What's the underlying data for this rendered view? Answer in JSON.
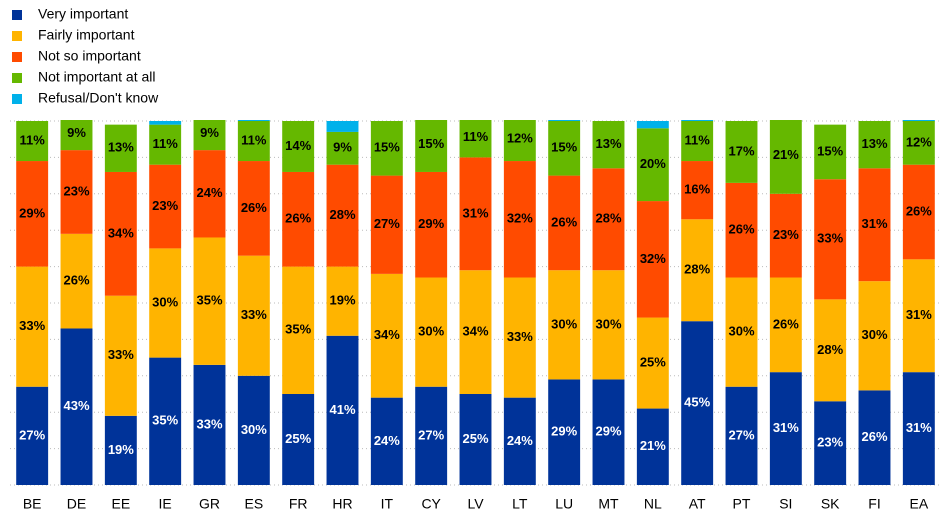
{
  "chart_data": {
    "type": "stacked_bar",
    "categories": [
      "BE",
      "DE",
      "EE",
      "IE",
      "GR",
      "ES",
      "FR",
      "HR",
      "IT",
      "CY",
      "LV",
      "LT",
      "LU",
      "MT",
      "NL",
      "AT",
      "PT",
      "SI",
      "SK",
      "FI",
      "EA"
    ],
    "series": [
      {
        "name": "Very important",
        "color": "#003399",
        "values": [
          27,
          43,
          19,
          35,
          33,
          30,
          25,
          41,
          24,
          27,
          25,
          24,
          29,
          29,
          21,
          45,
          27,
          31,
          23,
          26,
          31
        ],
        "value_labels": [
          "27%",
          "43%",
          "19%",
          "35%",
          "33%",
          "30%",
          "25%",
          "41%",
          "24%",
          "27%",
          "25%",
          "24%",
          "29%",
          "29%",
          "21%",
          "45%",
          "27%",
          "31%",
          "23%",
          "26%",
          "31%"
        ]
      },
      {
        "name": "Fairly important",
        "color": "#FFB400",
        "values": [
          33,
          26,
          33,
          30,
          35,
          33,
          35,
          19,
          34,
          30,
          34,
          33,
          30,
          30,
          25,
          28,
          30,
          26,
          28,
          30,
          31
        ],
        "value_labels": [
          "33%",
          "26%",
          "33%",
          "30%",
          "35%",
          "33%",
          "35%",
          "19%",
          "34%",
          "30%",
          "34%",
          "33%",
          "30%",
          "30%",
          "25%",
          "28%",
          "30%",
          "26%",
          "28%",
          "30%",
          "31%"
        ]
      },
      {
        "name": "Not so important",
        "color": "#FF4B00",
        "values": [
          29,
          23,
          34,
          23,
          24,
          26,
          26,
          28,
          27,
          29,
          31,
          32,
          26,
          28,
          32,
          16,
          26,
          23,
          33,
          31,
          26
        ],
        "value_labels": [
          "29%",
          "23%",
          "34%",
          "23%",
          "24%",
          "26%",
          "26%",
          "28%",
          "27%",
          "29%",
          "31%",
          "32%",
          "26%",
          "28%",
          "32%",
          "16%",
          "26%",
          "23%",
          "33%",
          "31%",
          "26%"
        ]
      },
      {
        "name": "Not important at all",
        "color": "#65B800",
        "values": [
          11,
          9,
          13,
          11,
          9,
          11,
          14,
          9,
          15,
          15,
          11,
          12,
          15,
          13,
          20,
          11,
          17,
          21,
          15,
          13,
          12
        ],
        "value_labels": [
          "11%",
          "9%",
          "13%",
          "11%",
          "9%",
          "11%",
          "14%",
          "9%",
          "15%",
          "15%",
          "11%",
          "12%",
          "15%",
          "13%",
          "20%",
          "11%",
          "17%",
          "21%",
          "15%",
          "13%",
          "12%"
        ]
      },
      {
        "name": "Refusal/Don't know",
        "color": "#00B1EA",
        "values": [
          0,
          0,
          0,
          1,
          0,
          1,
          0,
          3,
          0,
          0,
          0,
          0,
          1,
          0,
          2,
          1,
          0,
          0,
          0,
          0,
          1
        ]
      }
    ],
    "ylim": [
      0,
      100
    ],
    "yticks": [
      0,
      10,
      20,
      30,
      40,
      50,
      60,
      70,
      80,
      90,
      100
    ],
    "grid": true
  }
}
